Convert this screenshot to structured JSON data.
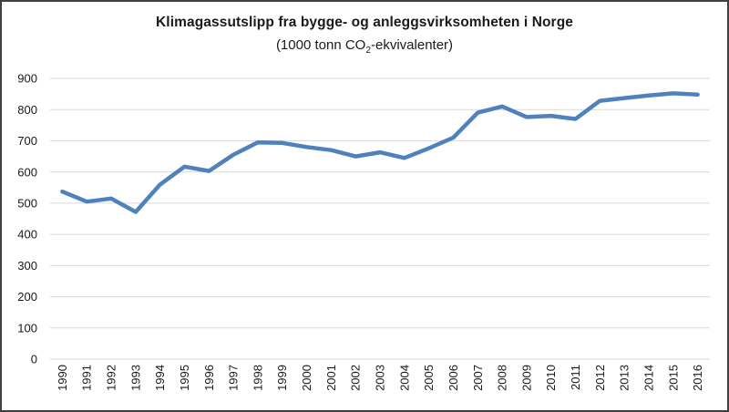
{
  "chart": {
    "title": "Klimagassutslipp fra bygge- og anleggsvirksomheten i Norge",
    "subtitle_pre": "(1000 tonn CO",
    "subtitle_sub": "2",
    "subtitle_post": "-ekvivalenter)"
  },
  "chart_data": {
    "type": "line",
    "title": "Klimagassutslipp fra bygge- og anleggsvirksomheten i Norge",
    "subtitle": "(1000 tonn CO2-ekvivalenter)",
    "categories": [
      "1990",
      "1991",
      "1992",
      "1993",
      "1994",
      "1995",
      "1996",
      "1997",
      "1998",
      "1999",
      "2000",
      "2001",
      "2002",
      "2003",
      "2004",
      "2005",
      "2006",
      "2007",
      "2008",
      "2009",
      "2010",
      "2011",
      "2012",
      "2013",
      "2014",
      "2015",
      "2016"
    ],
    "series": [
      {
        "name": "Klimagassutslipp",
        "values": [
          537,
          505,
          515,
          472,
          560,
          617,
          603,
          655,
          695,
          693,
          680,
          670,
          650,
          663,
          645,
          676,
          710,
          790,
          810,
          776,
          780,
          770,
          828,
          837,
          845,
          852,
          848
        ]
      }
    ],
    "xlabel": "",
    "ylabel": "",
    "ylim": [
      0,
      900
    ],
    "yticks": [
      0,
      100,
      200,
      300,
      400,
      500,
      600,
      700,
      800,
      900
    ],
    "grid": true,
    "legend": "none",
    "line_color": "#4F81BD",
    "gridline_color": "#D9D9D9",
    "text_color": "#1a1a1a",
    "border_color": "#404040"
  }
}
